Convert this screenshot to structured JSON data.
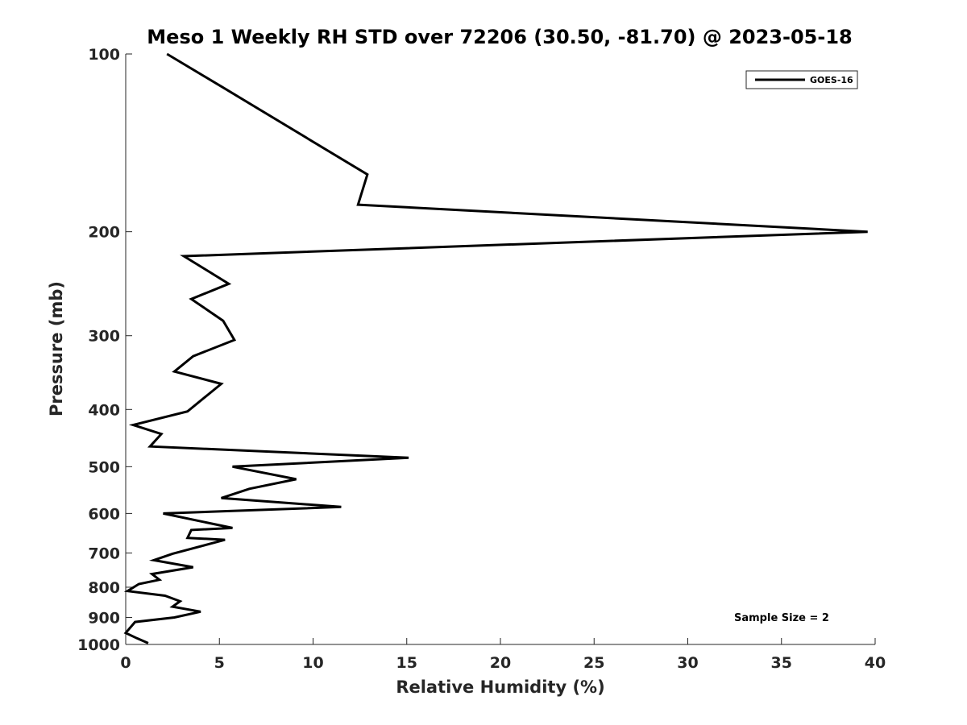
{
  "chart_data": {
    "type": "line",
    "title": "Meso 1 Weekly RH STD over 72206 (30.50, -81.70) @ 2023-05-18",
    "xlabel": "Relative Humidity (%)",
    "ylabel": "Pressure (mb)",
    "xlim": [
      0,
      40
    ],
    "ylim": [
      100,
      1000
    ],
    "y_scale": "log",
    "y_reversed": true,
    "grid": false,
    "x_ticks": [
      0,
      5,
      10,
      15,
      20,
      25,
      30,
      35,
      40
    ],
    "x_tick_labels": [
      "0",
      "5",
      "10",
      "15",
      "20",
      "25",
      "30",
      "35",
      "40"
    ],
    "y_ticks": [
      100,
      200,
      300,
      400,
      500,
      600,
      700,
      800,
      900,
      1000
    ],
    "y_tick_labels": [
      "100",
      "200",
      "300",
      "400",
      "500",
      "600",
      "700",
      "800",
      "900",
      "1000"
    ],
    "legend": {
      "position": "top-right",
      "entries": [
        "GOES-16"
      ]
    },
    "annotation": "Sample Size = 2",
    "series": [
      {
        "name": "GOES-16",
        "color": "#000000",
        "x": [
          2.2,
          5.2,
          12.9,
          12.4,
          39.6,
          3.1,
          5.5,
          3.5,
          5.2,
          5.8,
          3.6,
          2.6,
          5.1,
          3.3,
          0.4,
          1.9,
          1.3,
          15.1,
          5.7,
          9.1,
          6.6,
          5.1,
          11.5,
          2.0,
          5.7,
          3.5,
          3.3,
          5.3,
          2.5,
          1.5,
          3.6,
          1.4,
          1.8,
          0.7,
          0.1,
          2.1,
          2.9,
          2.5,
          4.0,
          2.6,
          0.5,
          0.0,
          0.6,
          1.2
        ],
        "y": [
          100,
          114,
          160,
          180,
          200,
          220,
          245,
          260,
          283,
          305,
          325,
          345,
          362,
          403,
          425,
          440,
          462,
          483,
          500,
          525,
          545,
          565,
          585,
          600,
          635,
          640,
          660,
          665,
          702,
          720,
          740,
          760,
          777,
          790,
          812,
          827,
          845,
          863,
          880,
          900,
          916,
          956,
          976,
          995
        ]
      }
    ]
  }
}
